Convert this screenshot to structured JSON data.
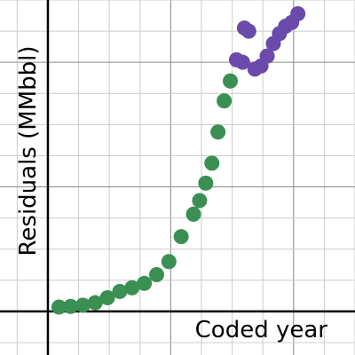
{
  "chart_data": {
    "type": "scatter",
    "title": "",
    "xlabel": "Coded year",
    "ylabel": "Residuals (MMbbl)",
    "grid": true,
    "minor_grid": true,
    "legend": "none",
    "xlim": [
      -0.78,
      5.0
    ],
    "ylim": [
      -0.7,
      5.0
    ],
    "axis_color": "#000000",
    "grid_color": "#cccccc",
    "major_grid_color": "#999999",
    "series": [
      {
        "color": "#3a8f52",
        "points": [
          [
            0.18,
            0.07
          ],
          [
            0.37,
            0.08
          ],
          [
            0.57,
            0.1
          ],
          [
            0.77,
            0.14
          ],
          [
            0.97,
            0.22
          ],
          [
            1.17,
            0.32
          ],
          [
            1.37,
            0.38
          ],
          [
            1.57,
            0.45
          ],
          [
            1.77,
            0.59
          ],
          [
            1.97,
            0.8
          ],
          [
            2.17,
            1.2
          ],
          [
            2.37,
            1.56
          ],
          [
            2.47,
            1.78
          ],
          [
            2.57,
            2.06
          ],
          [
            2.67,
            2.38
          ],
          [
            2.77,
            2.88
          ],
          [
            2.87,
            3.38
          ],
          [
            2.97,
            3.7
          ]
        ]
      },
      {
        "color": "#6a4aaa",
        "points": [
          [
            3.07,
            4.04
          ],
          [
            3.17,
            4.0
          ],
          [
            3.2,
            4.55
          ],
          [
            3.27,
            4.5
          ],
          [
            3.37,
            3.89
          ],
          [
            3.47,
            3.94
          ],
          [
            3.57,
            4.1
          ],
          [
            3.67,
            4.3
          ],
          [
            3.77,
            4.46
          ],
          [
            3.87,
            4.58
          ],
          [
            3.97,
            4.64
          ],
          [
            4.07,
            4.78
          ]
        ]
      }
    ]
  }
}
